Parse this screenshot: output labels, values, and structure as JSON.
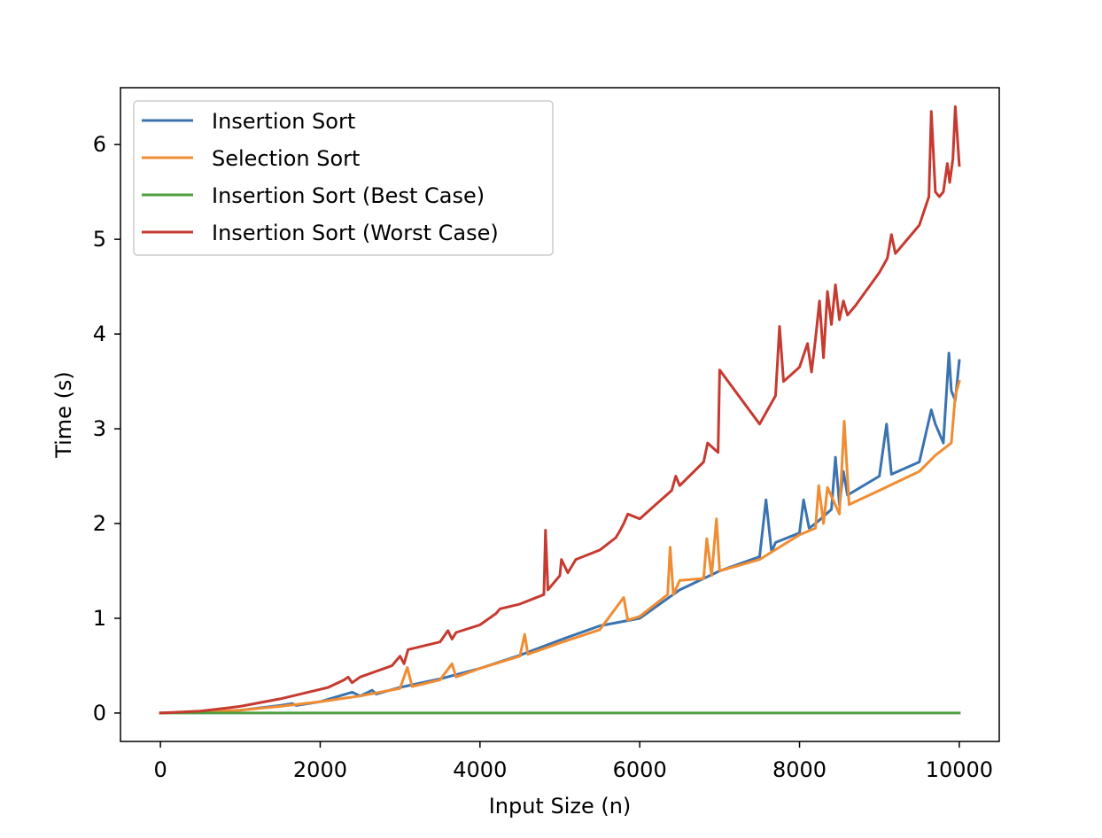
{
  "chart_data": {
    "type": "line",
    "xlabel": "Input Size (n)",
    "ylabel": "Time (s)",
    "xlim": [
      -500,
      10500
    ],
    "ylim": [
      -0.3,
      6.6
    ],
    "xticks": [
      0,
      2000,
      4000,
      6000,
      8000,
      10000
    ],
    "xtick_labels": [
      "0",
      "2000",
      "4000",
      "6000",
      "8000",
      "10000"
    ],
    "yticks": [
      0,
      1,
      2,
      3,
      4,
      5,
      6
    ],
    "ytick_labels": [
      "0",
      "1",
      "2",
      "3",
      "4",
      "5",
      "6"
    ],
    "grid": false,
    "legend_position": "upper-left",
    "series": [
      {
        "name": "Insertion Sort",
        "color": "#3a73b0",
        "x": [
          0,
          500,
          1000,
          1500,
          1650,
          1700,
          2000,
          2400,
          2500,
          2650,
          2700,
          3000,
          3500,
          4000,
          4500,
          5000,
          5500,
          6000,
          6500,
          7000,
          7500,
          7580,
          7650,
          7700,
          8000,
          8050,
          8120,
          8200,
          8400,
          8450,
          8500,
          8550,
          8600,
          9000,
          9090,
          9150,
          9500,
          9650,
          9700,
          9800,
          9870,
          9900,
          9950,
          10000
        ],
        "y": [
          0,
          0.01,
          0.03,
          0.08,
          0.1,
          0.08,
          0.12,
          0.22,
          0.18,
          0.24,
          0.2,
          0.27,
          0.36,
          0.47,
          0.61,
          0.77,
          0.92,
          1.0,
          1.3,
          1.5,
          1.65,
          2.25,
          1.7,
          1.8,
          1.9,
          2.25,
          1.95,
          2.0,
          2.15,
          2.7,
          2.2,
          2.55,
          2.3,
          2.5,
          3.05,
          2.52,
          2.65,
          3.2,
          3.05,
          2.85,
          3.8,
          3.4,
          3.3,
          3.72
        ]
      },
      {
        "name": "Selection Sort",
        "color": "#f08c32",
        "x": [
          0,
          500,
          1000,
          1500,
          2000,
          2500,
          3000,
          3090,
          3150,
          3500,
          3650,
          3700,
          4000,
          4500,
          4560,
          4600,
          5000,
          5500,
          5800,
          5850,
          6000,
          6350,
          6380,
          6420,
          6500,
          6800,
          6840,
          6900,
          6960,
          7000,
          7500,
          8000,
          8200,
          8240,
          8300,
          8350,
          8500,
          8560,
          8620,
          9000,
          9500,
          9700,
          9900,
          9950,
          10000
        ],
        "y": [
          0,
          0.01,
          0.03,
          0.07,
          0.12,
          0.18,
          0.26,
          0.48,
          0.28,
          0.35,
          0.52,
          0.38,
          0.47,
          0.6,
          0.83,
          0.62,
          0.74,
          0.88,
          1.22,
          0.98,
          1.02,
          1.25,
          1.75,
          1.25,
          1.4,
          1.42,
          1.84,
          1.45,
          2.05,
          1.5,
          1.62,
          1.88,
          1.95,
          2.4,
          2.0,
          2.38,
          2.1,
          3.08,
          2.2,
          2.35,
          2.55,
          2.72,
          2.85,
          3.35,
          3.5
        ]
      },
      {
        "name": "Insertion Sort (Best Case)",
        "color": "#4f9e3f",
        "x": [
          0,
          10000
        ],
        "y": [
          0.0,
          0.0
        ]
      },
      {
        "name": "Insertion Sort (Worst Case)",
        "color": "#c63a30",
        "x": [
          0,
          500,
          1000,
          1500,
          2000,
          2100,
          2300,
          2350,
          2400,
          2500,
          2900,
          3000,
          3050,
          3100,
          3500,
          3600,
          3650,
          3700,
          4000,
          4200,
          4250,
          4500,
          4800,
          4820,
          4850,
          5000,
          5020,
          5100,
          5200,
          5500,
          5700,
          5750,
          5800,
          5850,
          6000,
          6200,
          6400,
          6450,
          6500,
          6800,
          6850,
          6980,
          7000,
          7500,
          7700,
          7750,
          7800,
          8000,
          8100,
          8150,
          8200,
          8250,
          8300,
          8350,
          8400,
          8450,
          8500,
          8550,
          8600,
          8700,
          9000,
          9100,
          9150,
          9200,
          9500,
          9620,
          9650,
          9700,
          9750,
          9800,
          9850,
          9880,
          9920,
          9950,
          10000
        ],
        "y": [
          0,
          0.02,
          0.07,
          0.15,
          0.25,
          0.27,
          0.35,
          0.38,
          0.32,
          0.38,
          0.5,
          0.6,
          0.52,
          0.67,
          0.75,
          0.87,
          0.78,
          0.85,
          0.93,
          1.05,
          1.1,
          1.15,
          1.25,
          1.93,
          1.3,
          1.45,
          1.62,
          1.48,
          1.62,
          1.72,
          1.85,
          1.92,
          2.0,
          2.1,
          2.05,
          2.2,
          2.35,
          2.5,
          2.4,
          2.65,
          2.85,
          2.75,
          3.62,
          3.05,
          3.35,
          4.08,
          3.5,
          3.65,
          3.9,
          3.6,
          3.95,
          4.35,
          3.75,
          4.45,
          4.1,
          4.52,
          4.15,
          4.35,
          4.2,
          4.3,
          4.65,
          4.8,
          5.05,
          4.85,
          5.15,
          5.45,
          6.35,
          5.5,
          5.45,
          5.5,
          5.8,
          5.6,
          5.85,
          6.4,
          5.78
        ]
      }
    ]
  }
}
